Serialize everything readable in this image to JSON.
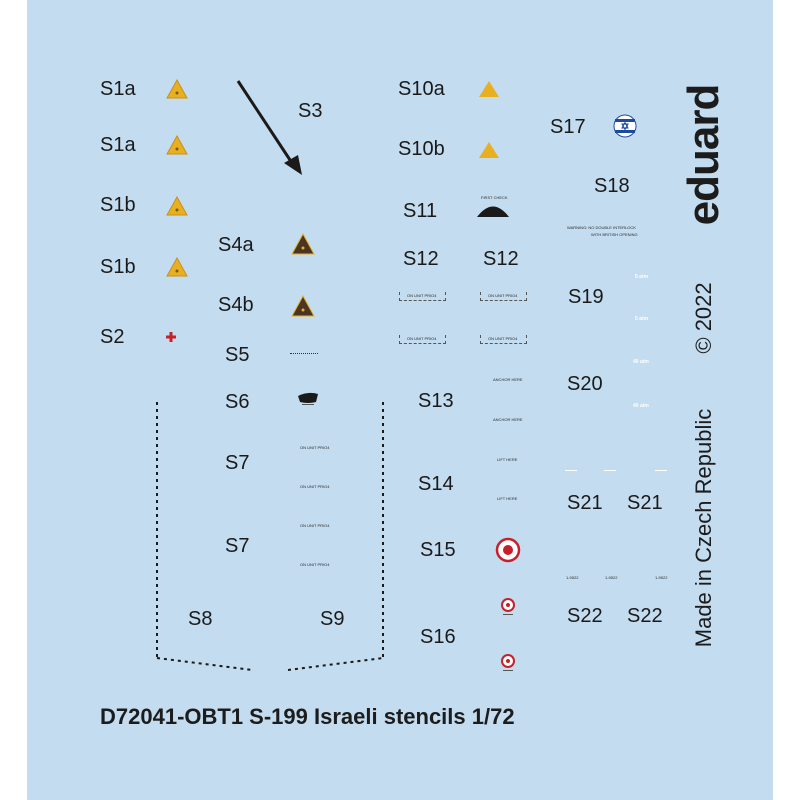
{
  "sheet": {
    "title": "D72041-OBT1 S-199 Israeli stencils 1/72",
    "brand": "eduard",
    "origin": "Made in Czech Republic",
    "copyright": "© 2022",
    "background_color": "#c3dcef"
  },
  "labels": {
    "s1a_1": "S1a",
    "s1a_2": "S1a",
    "s1b_1": "S1b",
    "s1b_2": "S1b",
    "s2": "S2",
    "s3": "S3",
    "s4a": "S4a",
    "s4b": "S4b",
    "s5": "S5",
    "s6": "S6",
    "s7_1": "S7",
    "s7_2": "S7",
    "s8": "S8",
    "s9": "S9",
    "s10a": "S10a",
    "s10b": "S10b",
    "s11": "S11",
    "s12_1": "S12",
    "s12_2": "S12",
    "s13": "S13",
    "s14": "S14",
    "s15": "S15",
    "s16": "S16",
    "s17": "S17",
    "s18": "S18",
    "s19": "S19",
    "s20": "S20",
    "s21_1": "S21",
    "s21_2": "S21",
    "s22_1": "S22",
    "s22_2": "S22"
  },
  "stencil_text": {
    "s7_a": "ON UNIT PRIO4",
    "s11": "FIRST CHECK",
    "s12": "ON UNIT PRIO4",
    "s13_a": "ANCHOR HERE",
    "s13_b": "ANCHOR HERE",
    "s14_a": "LIFT HERE",
    "s14_b": "LIFT HERE",
    "s18_a": "WARNING: NO DOUBLE INTERLOCK",
    "s18_b": "WITH BRITISH OPENING",
    "s19_a": "5 atm",
    "s19_b": "5 atm",
    "s20_a": "40 atm",
    "s20_b": "40 atm",
    "s22": "1-9522"
  },
  "colors": {
    "warning_yellow": "#e8b020",
    "warning_brown": "#4b3422",
    "red": "#c8202a",
    "roundel_blue": "#1c4aa0",
    "ink": "#1a1a1a"
  }
}
